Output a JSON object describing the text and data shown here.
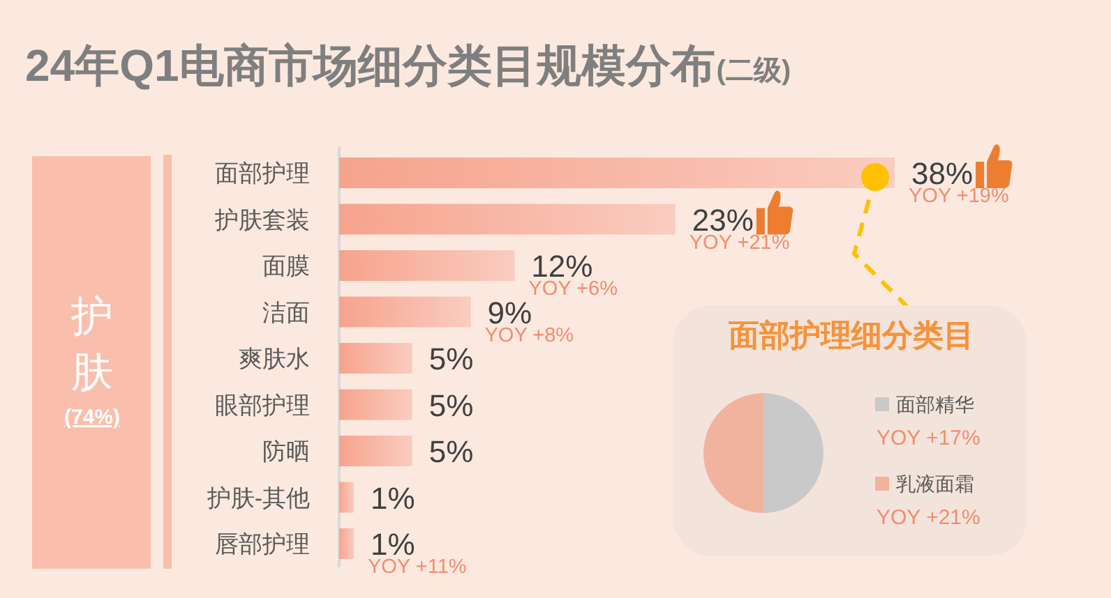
{
  "chart_data": [
    {
      "type": "bar",
      "orientation": "horizontal",
      "title": "24年Q1电商市场细分类目规模分布",
      "subtitle": "(二级)",
      "categories": [
        "面部护理",
        "护肤套装",
        "面膜",
        "洁面",
        "爽肤水",
        "眼部护理",
        "防晒",
        "护肤-其他",
        "唇部护理"
      ],
      "values": [
        38,
        23,
        12,
        9,
        5,
        5,
        5,
        1,
        1
      ],
      "color": "#f6a38c",
      "value_labels": [
        "38%",
        "23%",
        "12%",
        "9%",
        "5%",
        "5%",
        "5%",
        "1%",
        "1%"
      ],
      "annotations": [
        {
          "text": "YOY +19%",
          "x": 38,
          "y": "面部护理"
        },
        {
          "text": "YOY +21%",
          "x": 23,
          "y": "护肤套装"
        },
        {
          "text": "YOY +6%",
          "x": 12,
          "y": "面膜"
        },
        {
          "text": "YOY +8%",
          "x": 9,
          "y": "洁面"
        },
        {
          "text": "YOY +11%",
          "x": 1,
          "y": "唇部护理"
        },
        "护肤",
        "(74%)"
      ]
    },
    {
      "type": "pie",
      "title": "面部护理细分类目",
      "categories": [
        "面部精华",
        "乳液面霜"
      ],
      "values": [
        50,
        50
      ],
      "colors": [
        "#c9c9c9",
        "#f1b39e"
      ],
      "legend": "right",
      "annotations": [
        "YOY +17%",
        "YOY +21%"
      ]
    }
  ]
}
